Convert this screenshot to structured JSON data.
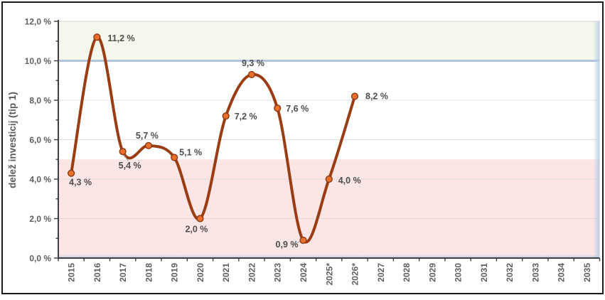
{
  "chart_data": {
    "type": "line",
    "title": "",
    "ylabel": "delež investicij (tip 1)",
    "x_categories": [
      "2015",
      "2016",
      "2017",
      "2018",
      "2019",
      "2020",
      "2021",
      "2022",
      "2023",
      "2024",
      "2025*",
      "2026*",
      "2027",
      "2028",
      "2029",
      "2030",
      "2031",
      "2032",
      "2033",
      "2034",
      "2035"
    ],
    "series": [
      {
        "name": "delež investicij (tip 1)",
        "points": [
          {
            "x": "2015",
            "value": 4.3,
            "label": "4,3 %",
            "anchor": "start",
            "dx": -3,
            "dy": 17,
            "leader": false
          },
          {
            "x": "2016",
            "value": 11.2,
            "label": "11,2 %",
            "anchor": "start",
            "dx": 15,
            "dy": 6,
            "leader": false
          },
          {
            "x": "2017",
            "value": 5.4,
            "label": "5,4 %",
            "anchor": "start",
            "dx": -6,
            "dy": 24,
            "leader": true
          },
          {
            "x": "2018",
            "value": 5.7,
            "label": "5,7 %",
            "anchor": "middle",
            "dx": -2,
            "dy": -10,
            "leader": false
          },
          {
            "x": "2019",
            "value": 5.1,
            "label": "5,1 %",
            "anchor": "start",
            "dx": 7,
            "dy": -3,
            "leader": false
          },
          {
            "x": "2020",
            "value": 2.0,
            "label": "2,0 %",
            "anchor": "middle",
            "dx": -5,
            "dy": 19,
            "leader": false
          },
          {
            "x": "2021",
            "value": 7.2,
            "label": "7,2 %",
            "anchor": "start",
            "dx": 12,
            "dy": 5,
            "leader": false
          },
          {
            "x": "2022",
            "value": 9.3,
            "label": "9,3 %",
            "anchor": "middle",
            "dx": 2,
            "dy": -12,
            "leader": false
          },
          {
            "x": "2023",
            "value": 7.6,
            "label": "7,6 %",
            "anchor": "start",
            "dx": 12,
            "dy": 5,
            "leader": false
          },
          {
            "x": "2024",
            "value": 0.9,
            "label": "0,9 %",
            "anchor": "end",
            "dx": -7,
            "dy": 10,
            "leader": true
          },
          {
            "x": "2025*",
            "value": 4.0,
            "label": "4,0 %",
            "anchor": "start",
            "dx": 13,
            "dy": 6,
            "leader": false
          },
          {
            "x": "2026*",
            "value": 8.2,
            "label": "8,2 %",
            "anchor": "start",
            "dx": 15,
            "dy": 4,
            "leader": false
          }
        ]
      }
    ],
    "ylim": [
      0,
      12
    ],
    "y_ticks": [
      {
        "value": 0,
        "label": "0,0 %"
      },
      {
        "value": 2,
        "label": "2,0 %"
      },
      {
        "value": 4,
        "label": "4,0 %"
      },
      {
        "value": 6,
        "label": "6,0 %"
      },
      {
        "value": 8,
        "label": "8,0 %"
      },
      {
        "value": 10,
        "label": "10,0 %"
      },
      {
        "value": 12,
        "label": "12,0 %"
      }
    ],
    "bands": [
      {
        "name": "upper-target-band",
        "from": 10,
        "to": 12,
        "color": "#F4F8EC"
      },
      {
        "name": "lower-alert-band",
        "from": 0,
        "to": 5,
        "color": "#FBE5E5"
      }
    ],
    "grid": true,
    "legend": "none"
  },
  "colors": {
    "line": "#9A3C14",
    "marker_fill": "#E8702A",
    "marker_stroke": "#8A3910",
    "data_label_text": "#4D4D4D",
    "axis_text": "#5F5F5F",
    "axis_line": "#3F3F3F",
    "grid_line": "#D8D8D8",
    "band_divider_blue": "#B2C5DD",
    "top_border_line": "#DCDCDC",
    "edge_blue": "#B8CCE3",
    "leader_line": "#A6A6A6",
    "frame_border": "#1C1C1C"
  }
}
